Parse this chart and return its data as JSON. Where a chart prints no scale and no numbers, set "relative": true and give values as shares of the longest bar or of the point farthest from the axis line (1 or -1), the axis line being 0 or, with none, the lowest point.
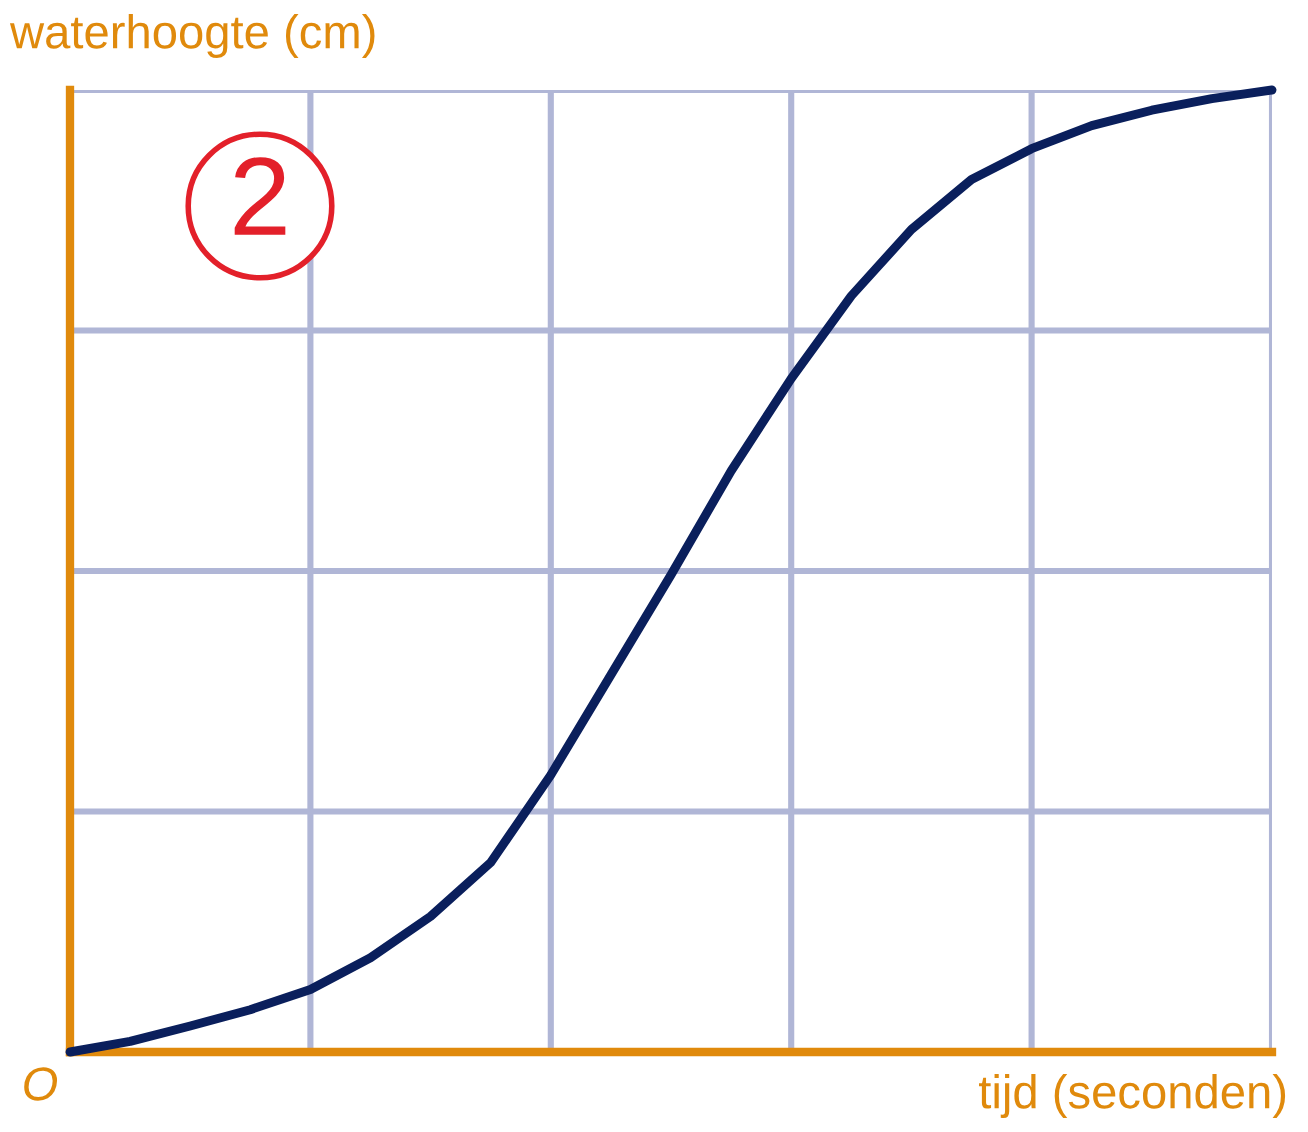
{
  "chart_data": {
    "type": "line",
    "relative": true,
    "xlabel": "tijd (seconden)",
    "ylabel": "waterhoogte (cm)",
    "annotations": [
      "2",
      "O"
    ],
    "categories": [
      null,
      null,
      null,
      null,
      null,
      null,
      null,
      null,
      null,
      null,
      null,
      null,
      null,
      null,
      null,
      null,
      null,
      null,
      null,
      null,
      null
    ],
    "grid": true,
    "marker": "none",
    "line_style": "solid",
    "series": [
      {
        "color": "#0a1f5c",
        "values": [
          0,
          0.011,
          0.027,
          0.044,
          0.065,
          0.098,
          0.141,
          0.197,
          0.288,
          0.392,
          0.496,
          0.604,
          0.7,
          0.786,
          0.855,
          0.907,
          0.939,
          0.963,
          0.979,
          0.991,
          1
        ]
      }
    ]
  }
}
